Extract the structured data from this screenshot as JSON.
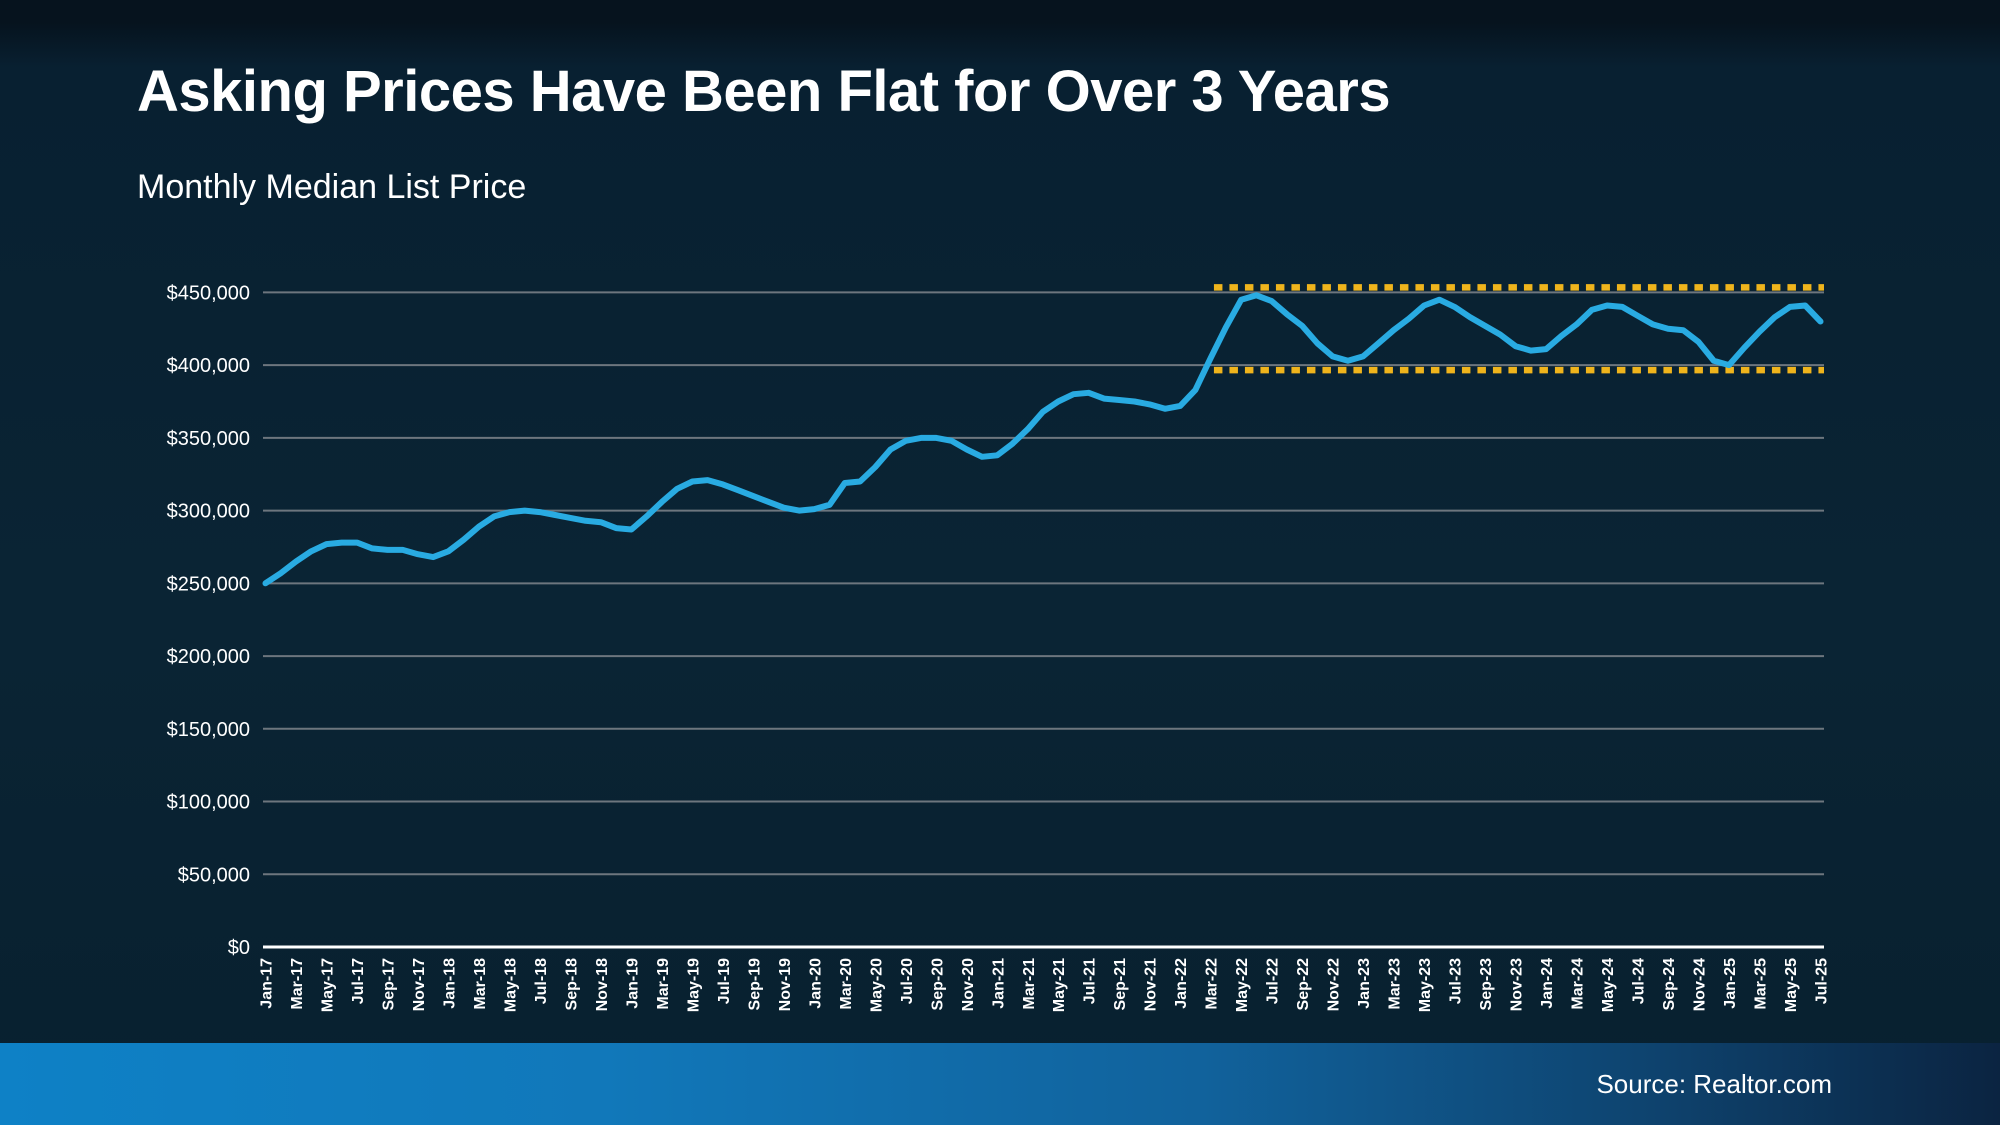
{
  "page": {
    "title": "Asking Prices Have Been Flat for Over 3 Years",
    "subtitle": "Monthly Median List Price",
    "source": "Source: Realtor.com"
  },
  "colors": {
    "background": "#0a2434",
    "line": "#29abe2",
    "band": "#efb41c",
    "gridline": "#6d767e",
    "axis_text": "#ffffff",
    "footer_left": "#0e81c6",
    "footer_right": "#0b2441"
  },
  "chart_data": {
    "type": "line",
    "title": "Asking Prices Have Been Flat for Over 3 Years",
    "subtitle": "Monthly Median List Price",
    "series_name": "Monthly Median List Price",
    "grid": "horizontal",
    "legend": "none",
    "ylim": [
      0,
      475000
    ],
    "yticks": [
      0,
      50000,
      100000,
      150000,
      200000,
      250000,
      300000,
      350000,
      400000,
      450000
    ],
    "x_tick_every": 2,
    "x": [
      "Jan-17",
      "Feb-17",
      "Mar-17",
      "Apr-17",
      "May-17",
      "Jun-17",
      "Jul-17",
      "Aug-17",
      "Sep-17",
      "Oct-17",
      "Nov-17",
      "Dec-17",
      "Jan-18",
      "Feb-18",
      "Mar-18",
      "Apr-18",
      "May-18",
      "Jun-18",
      "Jul-18",
      "Aug-18",
      "Sep-18",
      "Oct-18",
      "Nov-18",
      "Dec-18",
      "Jan-19",
      "Feb-19",
      "Mar-19",
      "Apr-19",
      "May-19",
      "Jun-19",
      "Jul-19",
      "Aug-19",
      "Sep-19",
      "Oct-19",
      "Nov-19",
      "Dec-19",
      "Jan-20",
      "Feb-20",
      "Mar-20",
      "Apr-20",
      "May-20",
      "Jun-20",
      "Jul-20",
      "Aug-20",
      "Sep-20",
      "Oct-20",
      "Nov-20",
      "Dec-20",
      "Jan-21",
      "Feb-21",
      "Mar-21",
      "Apr-21",
      "May-21",
      "Jun-21",
      "Jul-21",
      "Aug-21",
      "Sep-21",
      "Oct-21",
      "Nov-21",
      "Dec-21",
      "Jan-22",
      "Feb-22",
      "Mar-22",
      "Apr-22",
      "May-22",
      "Jun-22",
      "Jul-22",
      "Aug-22",
      "Sep-22",
      "Oct-22",
      "Nov-22",
      "Dec-22",
      "Jan-23",
      "Feb-23",
      "Mar-23",
      "Apr-23",
      "May-23",
      "Jun-23",
      "Jul-23",
      "Aug-23",
      "Sep-23",
      "Oct-23",
      "Nov-23",
      "Dec-23",
      "Jan-24",
      "Feb-24",
      "Mar-24",
      "Apr-24",
      "May-24",
      "Jun-24",
      "Jul-24",
      "Aug-24",
      "Sep-24",
      "Oct-24",
      "Nov-24",
      "Dec-24",
      "Jan-25",
      "Feb-25",
      "Mar-25",
      "Apr-25",
      "May-25",
      "Jun-25",
      "Jul-25"
    ],
    "values": [
      250000,
      257000,
      265000,
      272000,
      277000,
      278000,
      278000,
      274000,
      273000,
      273000,
      270000,
      268000,
      272000,
      280000,
      289000,
      296000,
      299000,
      300000,
      299000,
      297000,
      295000,
      293000,
      292000,
      288000,
      287000,
      296000,
      306000,
      315000,
      320000,
      321000,
      318000,
      314000,
      310000,
      306000,
      302000,
      300000,
      301000,
      304000,
      319000,
      320000,
      330000,
      342000,
      348000,
      350000,
      350000,
      348000,
      342000,
      337000,
      338000,
      346000,
      356000,
      368000,
      375000,
      380000,
      381000,
      377000,
      376000,
      375000,
      373000,
      370000,
      372000,
      383000,
      405000,
      426000,
      445000,
      448000,
      444000,
      435000,
      427000,
      415000,
      406000,
      403000,
      406000,
      415000,
      424000,
      432000,
      441000,
      445000,
      440000,
      433000,
      427000,
      421000,
      413000,
      410000,
      411000,
      420000,
      428000,
      438000,
      441000,
      440000,
      434000,
      428000,
      425000,
      424000,
      416000,
      403000,
      400000,
      412000,
      423000,
      433000,
      440000,
      441000,
      430000
    ],
    "reference_band": {
      "style": "dotted",
      "color": "#efb41c",
      "top_value": 450000,
      "bottom_value": 400000,
      "start_label": "Apr-22",
      "start_index": 63
    }
  }
}
